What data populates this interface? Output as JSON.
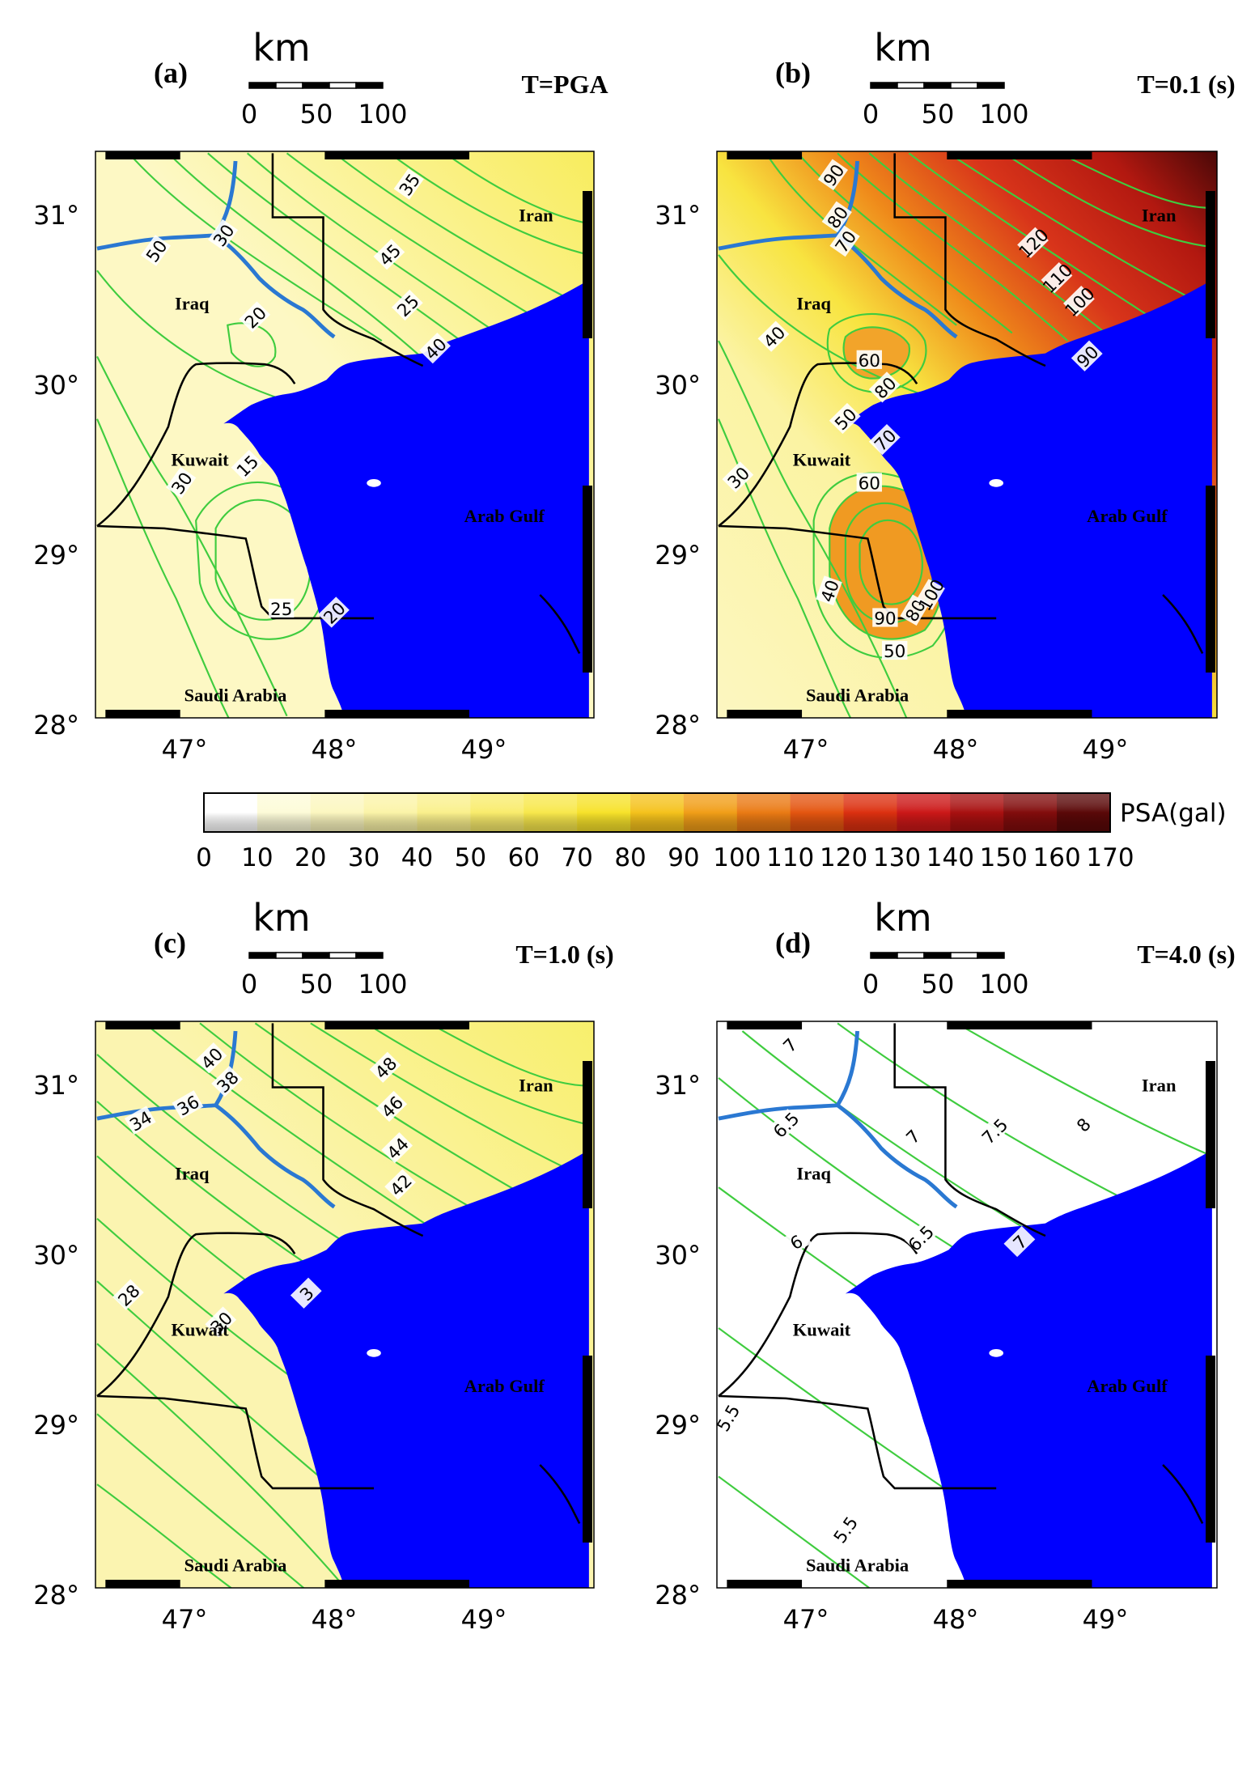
{
  "panels": [
    {
      "label": "(a)",
      "period": "T=PGA",
      "scale": {
        "title": "km",
        "ticks": [
          "0",
          "50",
          "100"
        ]
      },
      "lat_labels": [
        "31°",
        "30°",
        "29°",
        "28°"
      ],
      "lon_labels": [
        "47°",
        "48°",
        "49°"
      ],
      "places": [
        "Iran",
        "Iraq",
        "Kuwait",
        "Arab Gulf",
        "Saudi Arabia"
      ],
      "contour_labels": [
        "35",
        "30",
        "50",
        "45",
        "25",
        "40",
        "20",
        "15",
        "30",
        "25",
        "20"
      ],
      "land_color": "#fdf8c4",
      "land_color_ne": "#f8ec5a"
    },
    {
      "label": "(b)",
      "period": "T=0.1 (s)",
      "scale": {
        "title": "km",
        "ticks": [
          "0",
          "50",
          "100"
        ]
      },
      "lat_labels": [
        "31°",
        "30°",
        "29°",
        "28°"
      ],
      "lon_labels": [
        "47°",
        "48°",
        "49°"
      ],
      "places": [
        "Iran",
        "Iraq",
        "Kuwait",
        "Arab Gulf",
        "Saudi Arabia"
      ],
      "contour_labels": [
        "90",
        "80",
        "70",
        "40",
        "120",
        "110",
        "100",
        "90",
        "60",
        "80",
        "50",
        "70",
        "60",
        "30",
        "40",
        "90",
        "80",
        "100",
        "50"
      ],
      "land_color": "#faf3a3",
      "land_color_ne": "#c8281a"
    },
    {
      "label": "(c)",
      "period": "T=1.0 (s)",
      "scale": {
        "title": "km",
        "ticks": [
          "0",
          "50",
          "100"
        ]
      },
      "lat_labels": [
        "31°",
        "30°",
        "29°",
        "28°"
      ],
      "lon_labels": [
        "47°",
        "48°",
        "49°"
      ],
      "places": [
        "Iran",
        "Iraq",
        "Kuwait",
        "Arab Gulf",
        "Saudi Arabia"
      ],
      "contour_labels": [
        "40",
        "38",
        "36",
        "34",
        "48",
        "46",
        "44",
        "42",
        "30",
        "28",
        "3"
      ],
      "land_color": "#fbf4b0",
      "land_color_ne": "#f8ef6a"
    },
    {
      "label": "(d)",
      "period": "T=4.0 (s)",
      "scale": {
        "title": "km",
        "ticks": [
          "0",
          "50",
          "100"
        ]
      },
      "lat_labels": [
        "31°",
        "30°",
        "29°",
        "28°"
      ],
      "lon_labels": [
        "47°",
        "48°",
        "49°"
      ],
      "places": [
        "Iran",
        "Iraq",
        "Kuwait",
        "Arab Gulf",
        "Saudi Arabia"
      ],
      "contour_labels": [
        "7",
        "6.5",
        "7",
        "7.5",
        "8",
        "6.5",
        "7",
        "6",
        "5.5",
        "5.5"
      ],
      "land_color": "#ffffff",
      "land_color_ne": "#ffffff"
    }
  ],
  "colorbar": {
    "title": "PSA(gal)",
    "ticks": [
      "0",
      "10",
      "20",
      "30",
      "40",
      "50",
      "60",
      "70",
      "80",
      "90",
      "100",
      "110",
      "120",
      "130",
      "140",
      "150",
      "160",
      "170"
    ],
    "colors": [
      "#ffffff",
      "#fdfbd8",
      "#fcf7c0",
      "#fbf4a8",
      "#faf08c",
      "#f9ec6c",
      "#f8e84c",
      "#f7e22a",
      "#f5c21c",
      "#f19e18",
      "#ea7a14",
      "#e45510",
      "#dc3010",
      "#cc1818",
      "#a81010",
      "#820c0c",
      "#5a0808"
    ]
  },
  "colors": {
    "sea": "#0000ff",
    "river": "#2a78d2",
    "contour": "#3fcc3f",
    "border": "#000000"
  }
}
